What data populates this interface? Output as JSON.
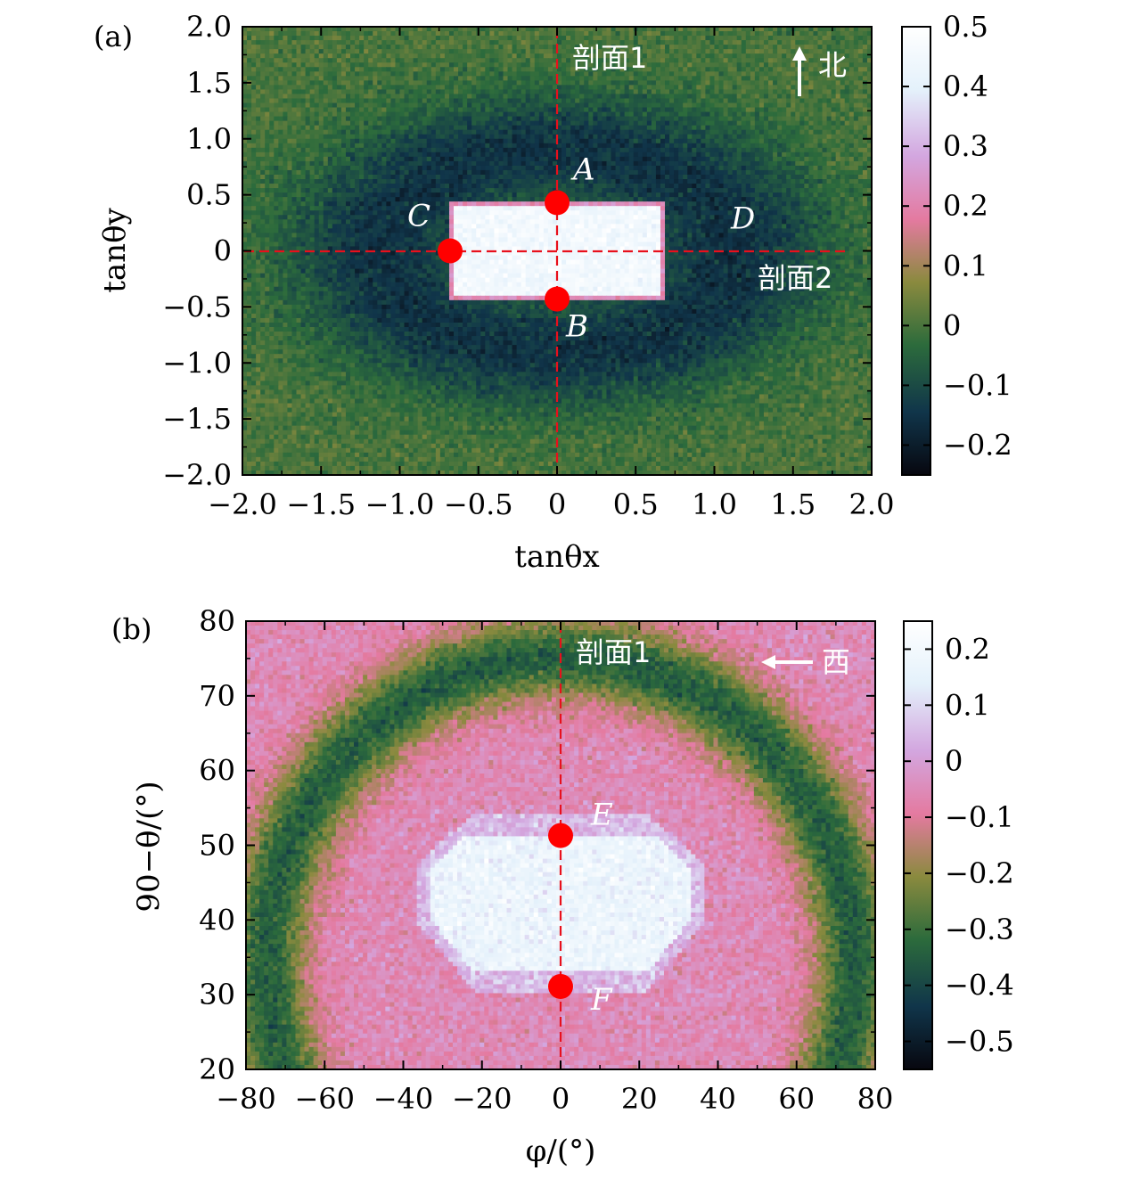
{
  "chart_data": [
    {
      "panel_label": "(a)",
      "type": "heatmap",
      "xlabel": "tanθx",
      "ylabel": "tanθy",
      "xlim": [
        -2.0,
        2.0
      ],
      "ylim": [
        -2.0,
        2.0
      ],
      "x_ticks": [
        -2.0,
        -1.5,
        -1.0,
        -0.5,
        0,
        0.5,
        1.0,
        1.5,
        2.0
      ],
      "x_tick_labels": [
        "−2.0",
        "−1.5",
        "−1.0",
        "−0.5",
        "0",
        "0.5",
        "1.0",
        "1.5",
        "2.0"
      ],
      "y_ticks": [
        2.0,
        1.5,
        1.0,
        0.5,
        0,
        -0.5,
        -1.0,
        -1.5,
        -2.0
      ],
      "y_tick_labels": [
        "2.0",
        "1.5",
        "1.0",
        "0.5",
        "0",
        "−0.5",
        "−1.0",
        "−1.5",
        "−2.0"
      ],
      "colorbar": {
        "range": [
          -0.25,
          0.5
        ],
        "ticks": [
          0.5,
          0.4,
          0.3,
          0.2,
          0.1,
          0,
          -0.1,
          -0.2
        ],
        "tick_labels": [
          "0.5",
          "0.4",
          "0.3",
          "0.2",
          "0.1",
          "0",
          "−0.1",
          "−0.2"
        ],
        "colors": [
          "#07070f",
          "#10354a",
          "#2c6b3c",
          "#8a8a3e",
          "#e47aa0",
          "#d3a6df",
          "#e4f1fb",
          "#ffffff"
        ]
      },
      "background_value": 0.0,
      "anomaly": {
        "shape": "rectangle",
        "x_range": [
          -0.68,
          0.68
        ],
        "y_range": [
          -0.43,
          0.43
        ],
        "value": 0.45,
        "halo_value": -0.15
      },
      "profile_lines": [
        {
          "label": "剖面1",
          "orientation": "vertical",
          "at": 0
        },
        {
          "label": "剖面2",
          "orientation": "horizontal",
          "at": 0
        }
      ],
      "points": [
        {
          "label": "A",
          "x": 0,
          "y": 0.43
        },
        {
          "label": "B",
          "x": 0,
          "y": -0.43
        },
        {
          "label": "C",
          "x": -0.68,
          "y": 0
        },
        {
          "label": "D",
          "x": 0.68,
          "y": 0
        }
      ],
      "marked_points": [
        "A",
        "B",
        "C"
      ],
      "direction_indicator": {
        "arrow": "up",
        "label": "北"
      }
    },
    {
      "panel_label": "(b)",
      "type": "heatmap",
      "xlabel": "φ/(°)",
      "ylabel": "90−θ/(°)",
      "xlim": [
        -80,
        80
      ],
      "ylim": [
        20,
        80
      ],
      "x_ticks": [
        -80,
        -60,
        -40,
        -20,
        0,
        20,
        40,
        60,
        80
      ],
      "x_tick_labels": [
        "−80",
        "−60",
        "−40",
        "−20",
        "0",
        "20",
        "40",
        "60",
        "80"
      ],
      "y_ticks": [
        80,
        70,
        60,
        50,
        40,
        30,
        20
      ],
      "y_tick_labels": [
        "80",
        "70",
        "60",
        "50",
        "40",
        "30",
        "20"
      ],
      "colorbar": {
        "range": [
          -0.55,
          0.25
        ],
        "ticks": [
          0.2,
          0.1,
          0,
          -0.1,
          -0.2,
          -0.3,
          -0.4,
          -0.5
        ],
        "tick_labels": [
          "0.2",
          "0.1",
          "0",
          "−0.1",
          "−0.2",
          "−0.3",
          "−0.4",
          "−0.5"
        ],
        "colors": [
          "#07070f",
          "#10354a",
          "#2c6b3c",
          "#8a8a3e",
          "#e47aa0",
          "#d3a6df",
          "#e4f1fb",
          "#ffffff"
        ]
      },
      "background_value": -0.05,
      "anomaly": {
        "shape": "trapezoid",
        "top_y": 51,
        "bottom_y": 33,
        "top_half_width_deg": 25,
        "mid_half_width_deg": 33,
        "bottom_half_width_deg": 22,
        "value": 0.17
      },
      "profile_lines": [
        {
          "label": "剖面1",
          "orientation": "vertical",
          "at": 0
        }
      ],
      "points": [
        {
          "label": "E",
          "x": 0,
          "y": 51.3
        },
        {
          "label": "F",
          "x": 0,
          "y": 31.1
        }
      ],
      "direction_indicator": {
        "arrow": "left",
        "label": "西"
      }
    }
  ]
}
